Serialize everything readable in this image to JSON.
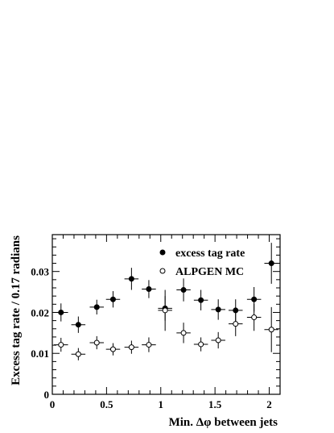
{
  "chart_data": {
    "type": "scatter",
    "xlabel": "Min. Δφ between jets",
    "ylabel": "Excess tag rate / 0.17 radians",
    "xlim": [
      0,
      2.1
    ],
    "ylim": [
      0,
      0.039
    ],
    "x_bin_halfwidth": 0.065,
    "xticks": [
      0,
      0.5,
      1,
      1.5,
      2
    ],
    "xtick_labels": [
      "0",
      "0.5",
      "1",
      "1.5",
      "2"
    ],
    "yticks": [
      0,
      0.01,
      0.02,
      0.03
    ],
    "ytick_labels": [
      "0",
      "0.01",
      "0.02",
      "0.03"
    ],
    "legend_placement": "top-right",
    "grid": false,
    "series": [
      {
        "name": "excess tag rate",
        "marker": "filled-circle",
        "color": "#000000",
        "x": [
          0.08,
          0.24,
          0.41,
          0.56,
          0.73,
          0.89,
          1.04,
          1.21,
          1.37,
          1.53,
          1.69,
          1.86,
          2.02
        ],
        "y": [
          0.02,
          0.017,
          0.0213,
          0.0232,
          0.0282,
          0.0257,
          0.021,
          0.0255,
          0.023,
          0.0207,
          0.0205,
          0.0232,
          0.032
        ],
        "yerr": [
          0.0022,
          0.002,
          0.0018,
          0.002,
          0.0027,
          0.0022,
          0.003,
          0.0028,
          0.0025,
          0.0025,
          0.0027,
          0.003,
          0.005
        ]
      },
      {
        "name": "ALPGEN MC",
        "marker": "open-circle",
        "color": "#000000",
        "x": [
          0.08,
          0.24,
          0.41,
          0.56,
          0.73,
          0.89,
          1.04,
          1.21,
          1.37,
          1.53,
          1.69,
          1.86,
          2.02
        ],
        "y": [
          0.0121,
          0.0098,
          0.0126,
          0.011,
          0.0115,
          0.0121,
          0.0205,
          0.015,
          0.0122,
          0.0132,
          0.0172,
          0.0188,
          0.0158
        ],
        "yerr": [
          0.0017,
          0.0015,
          0.0016,
          0.0015,
          0.0016,
          0.0018,
          0.005,
          0.0025,
          0.0017,
          0.002,
          0.003,
          0.0033,
          0.0055
        ]
      }
    ]
  }
}
